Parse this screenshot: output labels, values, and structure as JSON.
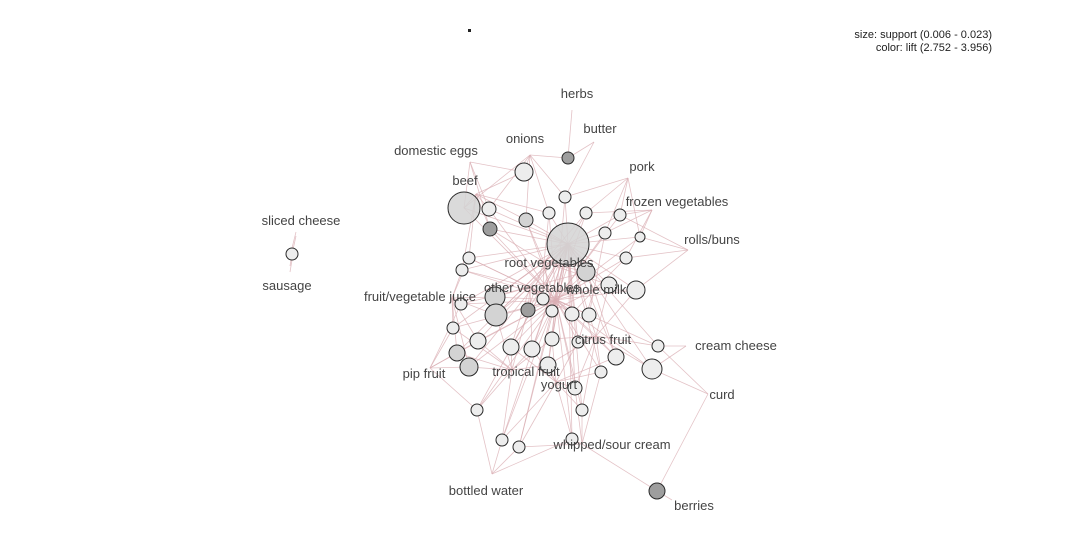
{
  "legend": {
    "size_text": "size: support (0.006 - 0.023)",
    "color_text": "color: lift (2.752 - 3.956)"
  },
  "colors": {
    "edge": "#d9aeb3",
    "node_stroke": "#2a2a2a",
    "node_light": "#ededed",
    "node_mid": "#d3d3d3",
    "node_dark": "#9e9e9e",
    "label": "#444444"
  },
  "items": [
    "herbs",
    "butter",
    "onions",
    "domestic eggs",
    "pork",
    "beef",
    "frozen vegetables",
    "sliced cheese",
    "rolls/buns",
    "root vegetables",
    "sausage",
    "fruit/vegetable juice",
    "other vegetables",
    "whole milk",
    "citrus fruit",
    "cream cheese",
    "pip fruit",
    "tropical fruit",
    "yogurt",
    "curd",
    "whipped/sour cream",
    "bottled water",
    "berries"
  ]
}
